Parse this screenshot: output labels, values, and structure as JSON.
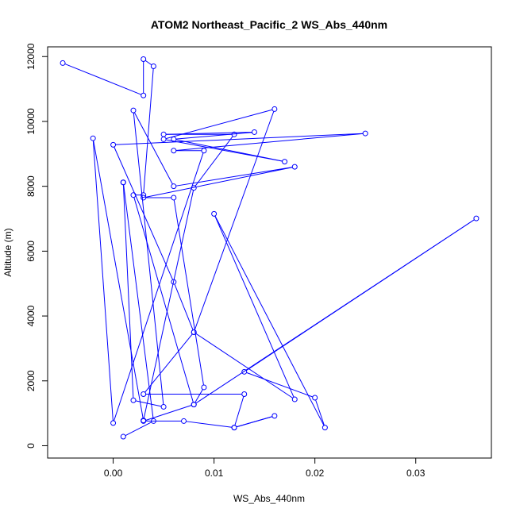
{
  "chart_data": {
    "type": "line",
    "title": "ATOM2 Northeast_Pacific_2 WS_Abs_440nm",
    "xlabel": "WS_Abs_440nm",
    "ylabel": "Altitude (m)",
    "xlim": [
      -0.0065,
      0.0375
    ],
    "ylim": [
      -380,
      12300
    ],
    "x_ticks": [
      0.0,
      0.01,
      0.02,
      0.03
    ],
    "x_tick_labels": [
      "0.00",
      "0.01",
      "0.02",
      "0.03"
    ],
    "y_ticks": [
      0,
      2000,
      4000,
      6000,
      8000,
      10000,
      12000
    ],
    "y_tick_labels": [
      "0",
      "2000",
      "4000",
      "6000",
      "8000",
      "10000",
      "12000"
    ],
    "grid": false,
    "series": [
      {
        "color": "#0000ff",
        "marker": "open-circle",
        "x": [
          0.001,
          0.004,
          0.001,
          0.001,
          0.002,
          0.005,
          0.002,
          0.006,
          0.018,
          0.003,
          0.006,
          0.009,
          0.008,
          0.003,
          0.007,
          0.012,
          0.016,
          0.012,
          0.013,
          0.003,
          0.008,
          0.006,
          0.0,
          0.025,
          0.006,
          0.009,
          0.0,
          -0.002,
          0.003,
          0.008,
          0.012,
          0.005,
          0.014,
          0.006,
          0.017,
          0.005,
          0.016,
          0.008,
          0.018,
          0.01,
          0.021,
          0.02,
          0.013,
          0.036,
          0.008,
          0.002,
          0.003,
          0.004,
          0.003,
          0.003,
          -0.005
        ],
        "y": [
          280,
          760,
          8120,
          8120,
          1400,
          1200,
          10340,
          8000,
          8600,
          7650,
          7650,
          1800,
          1270,
          760,
          760,
          560,
          920,
          560,
          1590,
          1590,
          3500,
          5050,
          9280,
          9630,
          9100,
          9100,
          700,
          9480,
          780,
          7950,
          9600,
          9600,
          9670,
          9450,
          8760,
          9450,
          10380,
          3500,
          1430,
          7150,
          560,
          1480,
          2280,
          7010,
          1270,
          7730,
          7730,
          11700,
          11920,
          10800,
          11800
        ]
      }
    ]
  }
}
